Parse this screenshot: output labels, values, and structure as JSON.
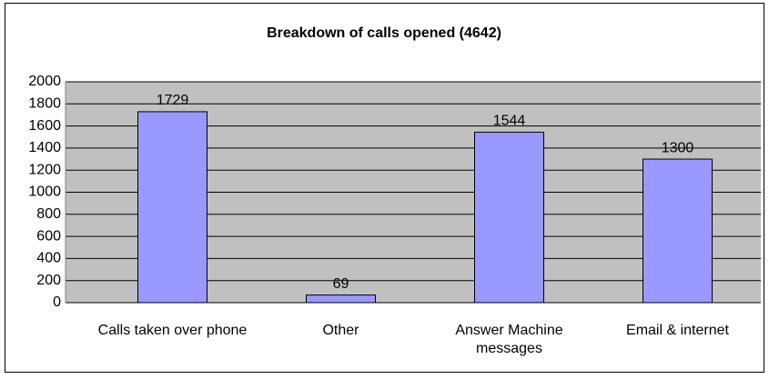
{
  "chart_data": {
    "type": "bar",
    "title": "Breakdown of calls opened (4642)",
    "categories": [
      "Calls taken over phone",
      "Other",
      "Answer Machine messages",
      "Email & internet"
    ],
    "values": [
      1729,
      69,
      1544,
      1300
    ],
    "color": "#9999ff",
    "ylim": [
      0,
      2000
    ],
    "yticks": [
      0,
      200,
      400,
      600,
      800,
      1000,
      1200,
      1400,
      1600,
      1800,
      2000
    ],
    "grid": true
  }
}
